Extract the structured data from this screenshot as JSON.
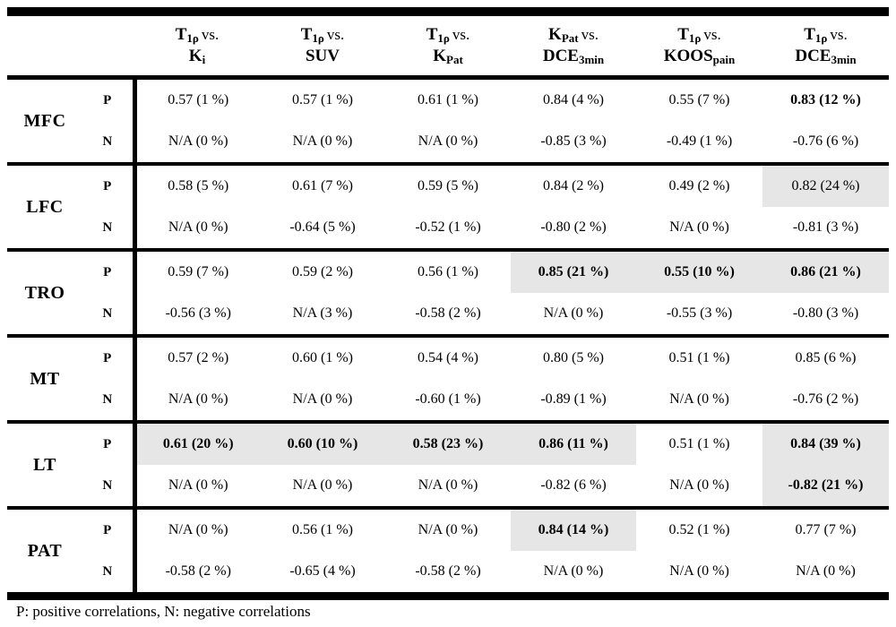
{
  "header": {
    "columns": [
      {
        "top_main": "T",
        "top_sub": "1ρ",
        "vs": "vs.",
        "bottom_main": "K",
        "bottom_sub": "i"
      },
      {
        "top_main": "T",
        "top_sub": "1ρ",
        "vs": "vs.",
        "bottom_main": "SUV",
        "bottom_sub": ""
      },
      {
        "top_main": "T",
        "top_sub": "1ρ",
        "vs": "vs.",
        "bottom_main": "K",
        "bottom_sub": "Pat"
      },
      {
        "top_main": "K",
        "top_sub": "Pat",
        "vs": "vs.",
        "bottom_main": "DCE",
        "bottom_sub": "3min"
      },
      {
        "top_main": "T",
        "top_sub": "1ρ",
        "vs": "vs.",
        "bottom_main": "KOOS",
        "bottom_sub": "pain"
      },
      {
        "top_main": "T",
        "top_sub": "1ρ",
        "vs": "vs.",
        "bottom_main": "DCE",
        "bottom_sub": "3min"
      }
    ]
  },
  "groups": [
    {
      "label": "MFC",
      "rows": [
        {
          "sign": "P",
          "cells": [
            {
              "text": "0.57 (1 %)"
            },
            {
              "text": "0.57 (1 %)"
            },
            {
              "text": "0.61 (1 %)"
            },
            {
              "text": "0.84 (4 %)"
            },
            {
              "text": "0.55 (7 %)"
            },
            {
              "text": "0.83 (12 %)",
              "bold": true
            }
          ]
        },
        {
          "sign": "N",
          "cells": [
            {
              "text": "N/A (0 %)"
            },
            {
              "text": "N/A (0 %)"
            },
            {
              "text": "N/A (0 %)"
            },
            {
              "text": "-0.85 (3 %)"
            },
            {
              "text": "-0.49 (1 %)"
            },
            {
              "text": "-0.76 (6 %)"
            }
          ]
        }
      ]
    },
    {
      "label": "LFC",
      "rows": [
        {
          "sign": "P",
          "cells": [
            {
              "text": "0.58 (5 %)"
            },
            {
              "text": "0.61 (7 %)"
            },
            {
              "text": "0.59 (5 %)"
            },
            {
              "text": "0.84 (2 %)"
            },
            {
              "text": "0.49 (2 %)"
            },
            {
              "text": "0.82 (24 %)",
              "gray": true
            }
          ]
        },
        {
          "sign": "N",
          "cells": [
            {
              "text": "N/A (0 %)"
            },
            {
              "text": "-0.64 (5 %)"
            },
            {
              "text": "-0.52 (1 %)"
            },
            {
              "text": "-0.80 (2 %)"
            },
            {
              "text": "N/A (0 %)"
            },
            {
              "text": "-0.81 (3 %)"
            }
          ]
        }
      ]
    },
    {
      "label": "TRO",
      "rows": [
        {
          "sign": "P",
          "cells": [
            {
              "text": "0.59 (7 %)"
            },
            {
              "text": "0.59 (2 %)"
            },
            {
              "text": "0.56 (1 %)"
            },
            {
              "text": "0.85 (21 %)",
              "bold": true,
              "gray": true
            },
            {
              "text": "0.55 (10 %)",
              "bold": true,
              "gray": true
            },
            {
              "text": "0.86 (21 %)",
              "bold": true,
              "gray": true
            }
          ]
        },
        {
          "sign": "N",
          "cells": [
            {
              "text": "-0.56 (3 %)"
            },
            {
              "text": "N/A (3 %)"
            },
            {
              "text": "-0.58 (2 %)"
            },
            {
              "text": "N/A (0 %)"
            },
            {
              "text": "-0.55 (3 %)"
            },
            {
              "text": "-0.80 (3 %)"
            }
          ]
        }
      ]
    },
    {
      "label": "MT",
      "rows": [
        {
          "sign": "P",
          "cells": [
            {
              "text": "0.57 (2 %)"
            },
            {
              "text": "0.60 (1 %)"
            },
            {
              "text": "0.54 (4 %)"
            },
            {
              "text": "0.80 (5 %)"
            },
            {
              "text": "0.51 (1 %)"
            },
            {
              "text": "0.85 (6 %)"
            }
          ]
        },
        {
          "sign": "N",
          "cells": [
            {
              "text": "N/A (0 %)"
            },
            {
              "text": "N/A (0 %)"
            },
            {
              "text": "-0.60 (1 %)"
            },
            {
              "text": "-0.89 (1 %)"
            },
            {
              "text": "N/A (0 %)"
            },
            {
              "text": "-0.76 (2 %)"
            }
          ]
        }
      ]
    },
    {
      "label": "LT",
      "rows": [
        {
          "sign": "P",
          "cells": [
            {
              "text": "0.61 (20 %)",
              "bold": true,
              "gray": true
            },
            {
              "text": "0.60 (10 %)",
              "bold": true,
              "gray": true
            },
            {
              "text": "0.58 (23 %)",
              "bold": true,
              "gray": true
            },
            {
              "text": "0.86 (11 %)",
              "bold": true,
              "gray": true
            },
            {
              "text": "0.51 (1 %)"
            },
            {
              "text": "0.84 (39 %)",
              "bold": true,
              "gray": true
            }
          ]
        },
        {
          "sign": "N",
          "cells": [
            {
              "text": "N/A (0 %)"
            },
            {
              "text": "N/A (0 %)"
            },
            {
              "text": "N/A (0 %)"
            },
            {
              "text": "-0.82 (6 %)"
            },
            {
              "text": "N/A (0 %)"
            },
            {
              "text": "-0.82 (21 %)",
              "bold": true,
              "gray": true
            }
          ]
        }
      ]
    },
    {
      "label": "PAT",
      "rows": [
        {
          "sign": "P",
          "cells": [
            {
              "text": "N/A (0 %)"
            },
            {
              "text": "0.56 (1 %)"
            },
            {
              "text": "N/A (0 %)"
            },
            {
              "text": "0.84 (14 %)",
              "bold": true,
              "gray": true
            },
            {
              "text": "0.52 (1 %)"
            },
            {
              "text": "0.77 (7 %)"
            }
          ]
        },
        {
          "sign": "N",
          "cells": [
            {
              "text": "-0.58 (2 %)"
            },
            {
              "text": "-0.65 (4 %)"
            },
            {
              "text": "-0.58 (2 %)"
            },
            {
              "text": "N/A (0 %)"
            },
            {
              "text": "N/A (0 %)"
            },
            {
              "text": "N/A (0 %)"
            }
          ]
        }
      ]
    }
  ],
  "footnote": "P: positive correlations, N: negative correlations",
  "colors": {
    "highlight": "#e6e6e6",
    "rule": "#000000"
  }
}
